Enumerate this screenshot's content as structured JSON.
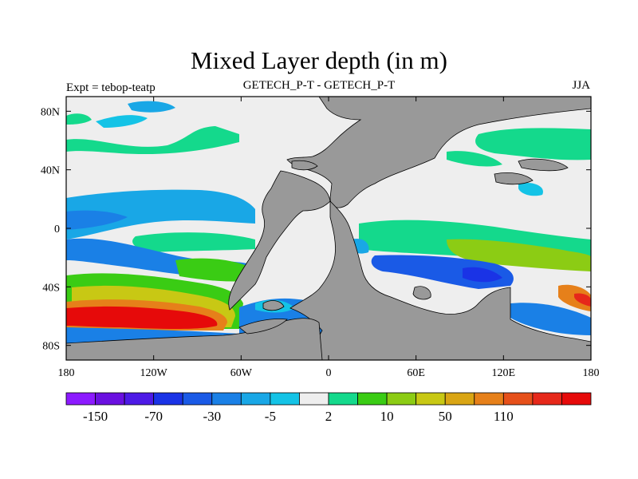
{
  "title": "Mixed Layer depth (in m)",
  "subtitle_left": "Expt = tebop-teatp",
  "subtitle_center": "GETECH_P-T - GETECH_P-T",
  "subtitle_right": "JJA",
  "map": {
    "lon_range": [
      -180,
      180
    ],
    "lat_range": [
      -90,
      90
    ],
    "x_ticks": [
      {
        "lon": -180,
        "label": "180"
      },
      {
        "lon": -120,
        "label": "120W"
      },
      {
        "lon": -60,
        "label": "60W"
      },
      {
        "lon": 0,
        "label": "0"
      },
      {
        "lon": 60,
        "label": "60E"
      },
      {
        "lon": 120,
        "label": "120E"
      },
      {
        "lon": 180,
        "label": "180"
      }
    ],
    "y_ticks": [
      {
        "lat": 80,
        "label": "80N"
      },
      {
        "lat": 40,
        "label": "40N"
      },
      {
        "lat": 0,
        "label": "0"
      },
      {
        "lat": -40,
        "label": "40S"
      },
      {
        "lat": -80,
        "label": "80S"
      }
    ],
    "land_color": "#999999",
    "background_color": "#eeeeee"
  },
  "colorbar": {
    "colors": [
      "#8c1aff",
      "#6a10e0",
      "#4d1ae6",
      "#1a33e6",
      "#1a5ae6",
      "#1a80e6",
      "#19a7e6",
      "#14c3e6",
      "#eeeeee",
      "#14d98c",
      "#3acc14",
      "#8ccc14",
      "#c8c814",
      "#d9a514",
      "#e6801a",
      "#e6501a",
      "#e6281a",
      "#e60a0a"
    ],
    "labels": [
      {
        "index": 1,
        "text": "-150"
      },
      {
        "index": 3,
        "text": "-70"
      },
      {
        "index": 5,
        "text": "-30"
      },
      {
        "index": 7,
        "text": "-5"
      },
      {
        "index": 9,
        "text": "2"
      },
      {
        "index": 11,
        "text": "10"
      },
      {
        "index": 13,
        "text": "50"
      },
      {
        "index": 15,
        "text": "110"
      }
    ]
  }
}
